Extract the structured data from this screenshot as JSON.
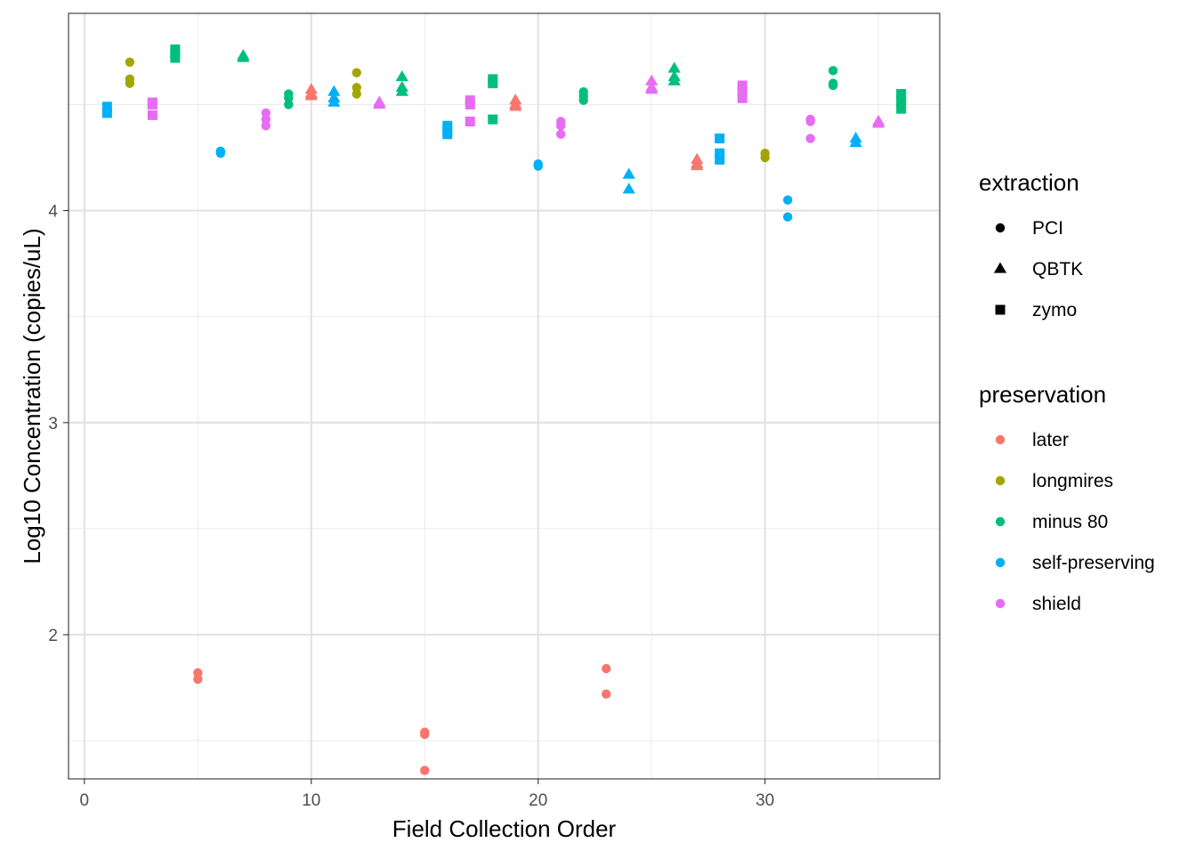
{
  "chart_data": {
    "type": "scatter",
    "xlabel": "Field Collection Order",
    "ylabel": "Log10 Concentration (copies/uL)",
    "xlim": [
      -0.7,
      37.7
    ],
    "ylim": [
      1.32,
      4.93
    ],
    "x_ticks": [
      0,
      10,
      20,
      30
    ],
    "y_ticks": [
      2,
      3,
      4
    ],
    "x_tick_labels": [
      "0",
      "10",
      "20",
      "30"
    ],
    "y_tick_labels": [
      "2",
      "3",
      "4"
    ],
    "grid": true,
    "legend_placement": "right",
    "legends": {
      "extraction": {
        "title": "extraction",
        "entries": [
          {
            "label": "PCI",
            "shape": "circle"
          },
          {
            "label": "QBTK",
            "shape": "triangle"
          },
          {
            "label": "zymo",
            "shape": "square"
          }
        ]
      },
      "preservation": {
        "title": "preservation",
        "entries": [
          {
            "label": "later",
            "color": "#F8766D"
          },
          {
            "label": "longmires",
            "color": "#A3A500"
          },
          {
            "label": "minus 80",
            "color": "#00BF7D"
          },
          {
            "label": "self-preserving",
            "color": "#00B0F6"
          },
          {
            "label": "shield",
            "color": "#E76BF3"
          }
        ]
      }
    },
    "points": [
      {
        "x": 1,
        "y": 4.49,
        "preservation": "self-preserving",
        "extraction": "zymo"
      },
      {
        "x": 1,
        "y": 4.46,
        "preservation": "self-preserving",
        "extraction": "zymo"
      },
      {
        "x": 2,
        "y": 4.7,
        "preservation": "longmires",
        "extraction": "PCI"
      },
      {
        "x": 2,
        "y": 4.62,
        "preservation": "longmires",
        "extraction": "PCI"
      },
      {
        "x": 2,
        "y": 4.6,
        "preservation": "longmires",
        "extraction": "PCI"
      },
      {
        "x": 3,
        "y": 4.51,
        "preservation": "shield",
        "extraction": "zymo"
      },
      {
        "x": 3,
        "y": 4.5,
        "preservation": "shield",
        "extraction": "zymo"
      },
      {
        "x": 3,
        "y": 4.45,
        "preservation": "shield",
        "extraction": "zymo"
      },
      {
        "x": 4,
        "y": 4.76,
        "preservation": "minus 80",
        "extraction": "zymo"
      },
      {
        "x": 4,
        "y": 4.74,
        "preservation": "minus 80",
        "extraction": "zymo"
      },
      {
        "x": 4,
        "y": 4.72,
        "preservation": "minus 80",
        "extraction": "zymo"
      },
      {
        "x": 5,
        "y": 1.82,
        "preservation": "later",
        "extraction": "PCI"
      },
      {
        "x": 5,
        "y": 1.79,
        "preservation": "later",
        "extraction": "PCI"
      },
      {
        "x": 6,
        "y": 4.28,
        "preservation": "self-preserving",
        "extraction": "PCI"
      },
      {
        "x": 6,
        "y": 4.27,
        "preservation": "self-preserving",
        "extraction": "PCI"
      },
      {
        "x": 7,
        "y": 4.73,
        "preservation": "minus 80",
        "extraction": "QBTK"
      },
      {
        "x": 7,
        "y": 4.72,
        "preservation": "minus 80",
        "extraction": "QBTK"
      },
      {
        "x": 8,
        "y": 4.46,
        "preservation": "shield",
        "extraction": "PCI"
      },
      {
        "x": 8,
        "y": 4.43,
        "preservation": "shield",
        "extraction": "PCI"
      },
      {
        "x": 8,
        "y": 4.4,
        "preservation": "shield",
        "extraction": "PCI"
      },
      {
        "x": 9,
        "y": 4.55,
        "preservation": "minus 80",
        "extraction": "PCI"
      },
      {
        "x": 9,
        "y": 4.53,
        "preservation": "minus 80",
        "extraction": "PCI"
      },
      {
        "x": 9,
        "y": 4.5,
        "preservation": "minus 80",
        "extraction": "PCI"
      },
      {
        "x": 10,
        "y": 4.57,
        "preservation": "later",
        "extraction": "QBTK"
      },
      {
        "x": 10,
        "y": 4.55,
        "preservation": "later",
        "extraction": "QBTK"
      },
      {
        "x": 10,
        "y": 4.54,
        "preservation": "later",
        "extraction": "QBTK"
      },
      {
        "x": 11,
        "y": 4.56,
        "preservation": "self-preserving",
        "extraction": "QBTK"
      },
      {
        "x": 11,
        "y": 4.53,
        "preservation": "self-preserving",
        "extraction": "QBTK"
      },
      {
        "x": 11,
        "y": 4.51,
        "preservation": "self-preserving",
        "extraction": "QBTK"
      },
      {
        "x": 12,
        "y": 4.65,
        "preservation": "longmires",
        "extraction": "PCI"
      },
      {
        "x": 12,
        "y": 4.58,
        "preservation": "longmires",
        "extraction": "PCI"
      },
      {
        "x": 12,
        "y": 4.55,
        "preservation": "longmires",
        "extraction": "PCI"
      },
      {
        "x": 13,
        "y": 4.51,
        "preservation": "shield",
        "extraction": "QBTK"
      },
      {
        "x": 13,
        "y": 4.5,
        "preservation": "shield",
        "extraction": "QBTK"
      },
      {
        "x": 14,
        "y": 4.63,
        "preservation": "minus 80",
        "extraction": "QBTK"
      },
      {
        "x": 14,
        "y": 4.58,
        "preservation": "minus 80",
        "extraction": "QBTK"
      },
      {
        "x": 14,
        "y": 4.56,
        "preservation": "minus 80",
        "extraction": "QBTK"
      },
      {
        "x": 15,
        "y": 1.54,
        "preservation": "later",
        "extraction": "PCI"
      },
      {
        "x": 15,
        "y": 1.53,
        "preservation": "later",
        "extraction": "PCI"
      },
      {
        "x": 15,
        "y": 1.36,
        "preservation": "later",
        "extraction": "PCI"
      },
      {
        "x": 16,
        "y": 4.4,
        "preservation": "self-preserving",
        "extraction": "zymo"
      },
      {
        "x": 16,
        "y": 4.38,
        "preservation": "self-preserving",
        "extraction": "zymo"
      },
      {
        "x": 16,
        "y": 4.36,
        "preservation": "self-preserving",
        "extraction": "zymo"
      },
      {
        "x": 17,
        "y": 4.52,
        "preservation": "shield",
        "extraction": "zymo"
      },
      {
        "x": 17,
        "y": 4.5,
        "preservation": "shield",
        "extraction": "zymo"
      },
      {
        "x": 17,
        "y": 4.42,
        "preservation": "shield",
        "extraction": "zymo"
      },
      {
        "x": 18,
        "y": 4.62,
        "preservation": "minus 80",
        "extraction": "zymo"
      },
      {
        "x": 18,
        "y": 4.6,
        "preservation": "minus 80",
        "extraction": "zymo"
      },
      {
        "x": 18,
        "y": 4.43,
        "preservation": "minus 80",
        "extraction": "zymo"
      },
      {
        "x": 19,
        "y": 4.52,
        "preservation": "later",
        "extraction": "QBTK"
      },
      {
        "x": 19,
        "y": 4.5,
        "preservation": "later",
        "extraction": "QBTK"
      },
      {
        "x": 19,
        "y": 4.49,
        "preservation": "later",
        "extraction": "QBTK"
      },
      {
        "x": 20,
        "y": 4.22,
        "preservation": "self-preserving",
        "extraction": "PCI"
      },
      {
        "x": 20,
        "y": 4.21,
        "preservation": "self-preserving",
        "extraction": "PCI"
      },
      {
        "x": 21,
        "y": 4.42,
        "preservation": "shield",
        "extraction": "PCI"
      },
      {
        "x": 21,
        "y": 4.4,
        "preservation": "shield",
        "extraction": "PCI"
      },
      {
        "x": 21,
        "y": 4.36,
        "preservation": "shield",
        "extraction": "PCI"
      },
      {
        "x": 22,
        "y": 4.56,
        "preservation": "minus 80",
        "extraction": "PCI"
      },
      {
        "x": 22,
        "y": 4.54,
        "preservation": "minus 80",
        "extraction": "PCI"
      },
      {
        "x": 22,
        "y": 4.52,
        "preservation": "minus 80",
        "extraction": "PCI"
      },
      {
        "x": 23,
        "y": 1.84,
        "preservation": "later",
        "extraction": "PCI"
      },
      {
        "x": 23,
        "y": 1.72,
        "preservation": "later",
        "extraction": "PCI"
      },
      {
        "x": 24,
        "y": 4.17,
        "preservation": "self-preserving",
        "extraction": "QBTK"
      },
      {
        "x": 24,
        "y": 4.1,
        "preservation": "self-preserving",
        "extraction": "QBTK"
      },
      {
        "x": 25,
        "y": 4.61,
        "preservation": "shield",
        "extraction": "QBTK"
      },
      {
        "x": 25,
        "y": 4.58,
        "preservation": "shield",
        "extraction": "QBTK"
      },
      {
        "x": 25,
        "y": 4.57,
        "preservation": "shield",
        "extraction": "QBTK"
      },
      {
        "x": 26,
        "y": 4.67,
        "preservation": "minus 80",
        "extraction": "QBTK"
      },
      {
        "x": 26,
        "y": 4.63,
        "preservation": "minus 80",
        "extraction": "QBTK"
      },
      {
        "x": 26,
        "y": 4.61,
        "preservation": "minus 80",
        "extraction": "QBTK"
      },
      {
        "x": 27,
        "y": 4.24,
        "preservation": "later",
        "extraction": "QBTK"
      },
      {
        "x": 27,
        "y": 4.22,
        "preservation": "later",
        "extraction": "QBTK"
      },
      {
        "x": 27,
        "y": 4.21,
        "preservation": "later",
        "extraction": "QBTK"
      },
      {
        "x": 28,
        "y": 4.34,
        "preservation": "self-preserving",
        "extraction": "zymo"
      },
      {
        "x": 28,
        "y": 4.27,
        "preservation": "self-preserving",
        "extraction": "zymo"
      },
      {
        "x": 28,
        "y": 4.24,
        "preservation": "self-preserving",
        "extraction": "zymo"
      },
      {
        "x": 29,
        "y": 4.59,
        "preservation": "shield",
        "extraction": "zymo"
      },
      {
        "x": 29,
        "y": 4.56,
        "preservation": "shield",
        "extraction": "zymo"
      },
      {
        "x": 29,
        "y": 4.53,
        "preservation": "shield",
        "extraction": "zymo"
      },
      {
        "x": 30,
        "y": 4.27,
        "preservation": "longmires",
        "extraction": "PCI"
      },
      {
        "x": 30,
        "y": 4.25,
        "preservation": "longmires",
        "extraction": "PCI"
      },
      {
        "x": 31,
        "y": 4.05,
        "preservation": "self-preserving",
        "extraction": "PCI"
      },
      {
        "x": 31,
        "y": 3.97,
        "preservation": "self-preserving",
        "extraction": "PCI"
      },
      {
        "x": 32,
        "y": 4.43,
        "preservation": "shield",
        "extraction": "PCI"
      },
      {
        "x": 32,
        "y": 4.42,
        "preservation": "shield",
        "extraction": "PCI"
      },
      {
        "x": 32,
        "y": 4.34,
        "preservation": "shield",
        "extraction": "PCI"
      },
      {
        "x": 33,
        "y": 4.66,
        "preservation": "minus 80",
        "extraction": "PCI"
      },
      {
        "x": 33,
        "y": 4.6,
        "preservation": "minus 80",
        "extraction": "PCI"
      },
      {
        "x": 33,
        "y": 4.59,
        "preservation": "minus 80",
        "extraction": "PCI"
      },
      {
        "x": 34,
        "y": 4.34,
        "preservation": "self-preserving",
        "extraction": "QBTK"
      },
      {
        "x": 34,
        "y": 4.32,
        "preservation": "self-preserving",
        "extraction": "QBTK"
      },
      {
        "x": 35,
        "y": 4.42,
        "preservation": "shield",
        "extraction": "QBTK"
      },
      {
        "x": 35,
        "y": 4.41,
        "preservation": "shield",
        "extraction": "QBTK"
      },
      {
        "x": 36,
        "y": 4.55,
        "preservation": "minus 80",
        "extraction": "zymo"
      },
      {
        "x": 36,
        "y": 4.52,
        "preservation": "minus 80",
        "extraction": "zymo"
      },
      {
        "x": 36,
        "y": 4.48,
        "preservation": "minus 80",
        "extraction": "zymo"
      }
    ]
  }
}
